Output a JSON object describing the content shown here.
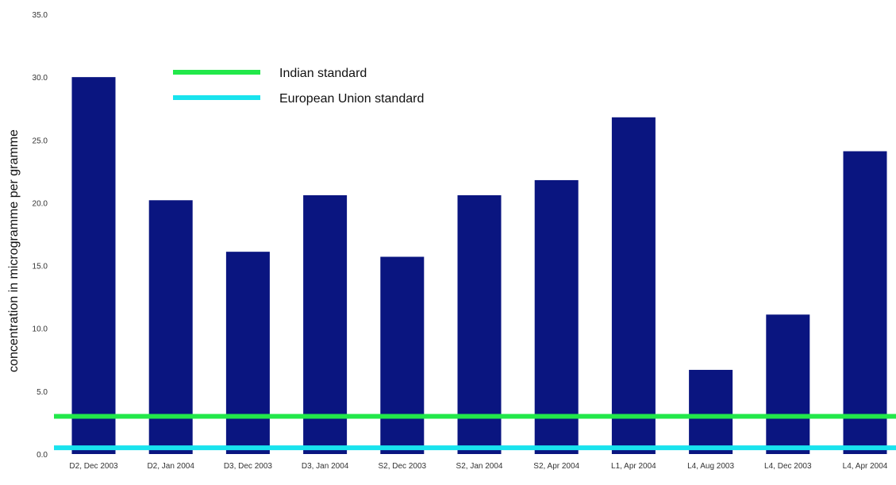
{
  "chart_data": {
    "type": "bar",
    "title": "",
    "xlabel": "",
    "ylabel": "concentration in microgramme per gramme",
    "ylim": [
      0,
      35
    ],
    "yticks": [
      "0.0",
      "5.0",
      "10.0",
      "15.0",
      "20.0",
      "25.0",
      "30.0",
      "35.0"
    ],
    "grid": false,
    "legend_position": "top-left",
    "categories": [
      "D2, Dec 2003",
      "D2, Jan 2004",
      "D3, Dec 2003",
      "D3, Jan 2004",
      "S2, Dec 2003",
      "S2, Jan 2004",
      "S2, Apr 2004",
      "L1, Apr 2004",
      "L4, Aug 2003",
      "L4, Dec 2003",
      "L4, Apr 2004"
    ],
    "series": [
      {
        "values": [
          30.0,
          20.2,
          16.1,
          20.6,
          15.7,
          20.6,
          21.8,
          26.8,
          6.7,
          11.1,
          24.1
        ],
        "color": "#0a1580"
      }
    ],
    "reference_lines": [
      {
        "name": "Indian standard",
        "value": 3.0,
        "color": "#22e84a"
      },
      {
        "name": "European Union standard",
        "value": 0.5,
        "color": "#19e3ee"
      }
    ]
  }
}
